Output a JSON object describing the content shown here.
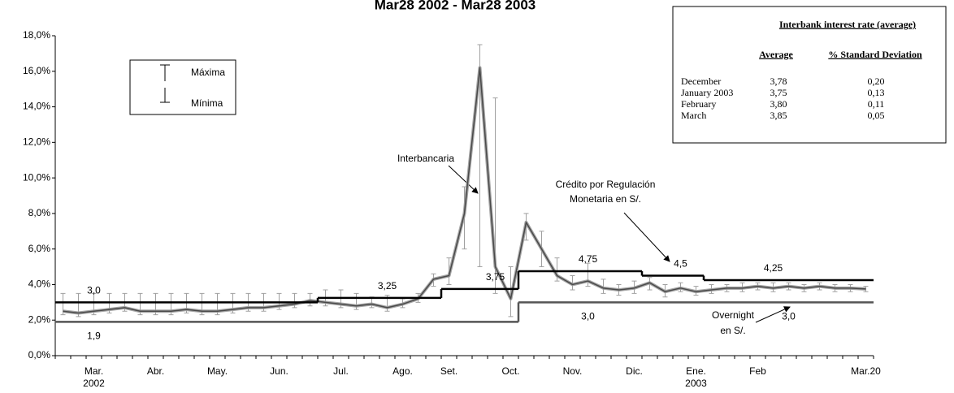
{
  "chart_data": {
    "type": "line",
    "title": "Mar28 2002 - Mar28 2003",
    "categories": [
      null,
      null,
      "Mar. 2002",
      null,
      null,
      null,
      "Abr.",
      null,
      null,
      null,
      "May.",
      null,
      null,
      null,
      "Jun.",
      null,
      null,
      null,
      "Jul.",
      null,
      null,
      null,
      "Ago.",
      null,
      null,
      "Set.",
      null,
      null,
      null,
      "Oct.",
      null,
      null,
      null,
      "Nov.",
      null,
      null,
      null,
      "Dic.",
      null,
      null,
      null,
      "Ene. 2003",
      null,
      null,
      null,
      "Feb",
      null,
      null,
      null,
      null,
      null,
      null,
      "Mar.20"
    ],
    "ylim": [
      0,
      18
    ],
    "yticks": [
      {
        "value": 0,
        "label": "0,0%"
      },
      {
        "value": 2,
        "label": "2,0%"
      },
      {
        "value": 4,
        "label": "4,0%"
      },
      {
        "value": 6,
        "label": "6,0%"
      },
      {
        "value": 8,
        "label": "8,0%"
      },
      {
        "value": 10,
        "label": "10,0%"
      },
      {
        "value": 12,
        "label": "12,0%"
      },
      {
        "value": 14,
        "label": "14,0%"
      },
      {
        "value": 16,
        "label": "16,0%"
      },
      {
        "value": 18,
        "label": "18,0%"
      }
    ],
    "grid": false,
    "legend": "upper left",
    "series": [
      {
        "name": "Interbancaria",
        "type": "line",
        "color": "#4a4a4a",
        "values": [
          2.5,
          2.4,
          2.5,
          2.6,
          2.7,
          2.5,
          2.5,
          2.5,
          2.6,
          2.5,
          2.5,
          2.6,
          2.7,
          2.7,
          2.8,
          2.9,
          3.1,
          3.0,
          2.9,
          2.8,
          2.9,
          2.7,
          2.9,
          3.2,
          4.3,
          4.5,
          8.0,
          16.2,
          5.0,
          3.2,
          7.5,
          6.0,
          4.5,
          4.0,
          4.2,
          3.8,
          3.7,
          3.8,
          4.1,
          3.6,
          3.8,
          3.6,
          3.7,
          3.8,
          3.8,
          3.9,
          3.8,
          3.9,
          3.8,
          3.9,
          3.8,
          3.8,
          3.75
        ]
      },
      {
        "name": "Máxima",
        "type": "error_high",
        "color": "#a0a0a0",
        "values": [
          3.5,
          3.5,
          3.5,
          3.5,
          3.5,
          3.5,
          3.5,
          3.5,
          3.5,
          3.5,
          3.5,
          3.5,
          3.5,
          3.5,
          3.5,
          3.5,
          3.5,
          3.7,
          3.7,
          3.5,
          3.3,
          3.4,
          3.2,
          3.5,
          4.6,
          5.5,
          9.5,
          17.5,
          14.5,
          5.0,
          8.0,
          7.0,
          5.5,
          4.5,
          5.2,
          4.3,
          4.0,
          4.2,
          4.4,
          4.0,
          4.1,
          3.9,
          4.0,
          4.0,
          4.1,
          4.1,
          4.1,
          4.1,
          4.0,
          4.1,
          4.0,
          4.0,
          3.9
        ]
      },
      {
        "name": "Mínima",
        "type": "error_low",
        "color": "#a0a0a0",
        "values": [
          2.3,
          2.2,
          2.3,
          2.4,
          2.5,
          2.3,
          2.3,
          2.3,
          2.4,
          2.3,
          2.3,
          2.4,
          2.5,
          2.5,
          2.6,
          2.7,
          2.8,
          2.8,
          2.7,
          2.6,
          2.7,
          2.5,
          2.7,
          3.0,
          3.9,
          4.0,
          6.0,
          5.0,
          3.5,
          2.2,
          6.5,
          5.0,
          4.2,
          3.7,
          3.9,
          3.5,
          3.4,
          3.5,
          3.7,
          3.3,
          3.6,
          3.4,
          3.5,
          3.6,
          3.6,
          3.7,
          3.6,
          3.7,
          3.6,
          3.7,
          3.6,
          3.6,
          3.6
        ]
      },
      {
        "name": "Crédito por Regulación Monetaria en S/.",
        "type": "step",
        "color": "#000000",
        "values": [
          3.0,
          3.0,
          3.0,
          3.0,
          3.0,
          3.0,
          3.0,
          3.0,
          3.0,
          3.0,
          3.0,
          3.0,
          3.0,
          3.0,
          3.0,
          3.0,
          3.0,
          3.25,
          3.25,
          3.25,
          3.25,
          3.25,
          3.25,
          3.25,
          3.25,
          3.75,
          3.75,
          3.75,
          3.75,
          3.75,
          4.75,
          4.75,
          4.75,
          4.75,
          4.75,
          4.75,
          4.75,
          4.75,
          4.5,
          4.5,
          4.5,
          4.5,
          4.25,
          4.25,
          4.25,
          4.25,
          4.25,
          4.25,
          4.25,
          4.25,
          4.25,
          4.25,
          4.25
        ],
        "value_labels": [
          null,
          null,
          "3,0",
          null,
          null,
          null,
          null,
          null,
          null,
          null,
          null,
          null,
          null,
          null,
          null,
          null,
          null,
          null,
          null,
          null,
          null,
          "3,25",
          null,
          null,
          null,
          null,
          null,
          null,
          "3,75",
          null,
          null,
          null,
          null,
          null,
          "4,75",
          null,
          null,
          null,
          null,
          null,
          "4,5",
          null,
          null,
          null,
          null,
          null,
          "4,25",
          null,
          null,
          null,
          null,
          null,
          null
        ]
      },
      {
        "name": "Overnight en S/.",
        "type": "step",
        "color": "#555555",
        "values": [
          1.9,
          1.9,
          1.9,
          1.9,
          1.9,
          1.9,
          1.9,
          1.9,
          1.9,
          1.9,
          1.9,
          1.9,
          1.9,
          1.9,
          1.9,
          1.9,
          1.9,
          1.9,
          1.9,
          1.9,
          1.9,
          1.9,
          1.9,
          1.9,
          1.9,
          1.9,
          1.9,
          1.9,
          1.9,
          1.9,
          3.0,
          3.0,
          3.0,
          3.0,
          3.0,
          3.0,
          3.0,
          3.0,
          3.0,
          3.0,
          3.0,
          3.0,
          3.0,
          3.0,
          3.0,
          3.0,
          3.0,
          3.0,
          3.0,
          3.0,
          3.0,
          3.0,
          3.0
        ],
        "value_labels": [
          null,
          null,
          "1,9",
          null,
          null,
          null,
          null,
          null,
          null,
          null,
          null,
          null,
          null,
          null,
          null,
          null,
          null,
          null,
          null,
          null,
          null,
          null,
          null,
          null,
          null,
          null,
          null,
          null,
          null,
          null,
          null,
          null,
          null,
          null,
          "3,0",
          null,
          null,
          null,
          null,
          null,
          null,
          null,
          null,
          null,
          null,
          null,
          null,
          "3,0",
          null,
          null,
          null,
          null,
          null
        ]
      }
    ]
  },
  "table": {
    "title": "Interbank interest rate (average)",
    "columns": [
      "Average",
      "% Standard Deviation"
    ],
    "rows": [
      [
        "December",
        "3,78",
        "0,20"
      ],
      [
        "January 2003",
        "3,75",
        "0,13"
      ],
      [
        "February",
        "3,80",
        "0,11"
      ],
      [
        "March",
        "3,85",
        "0,05"
      ]
    ]
  }
}
